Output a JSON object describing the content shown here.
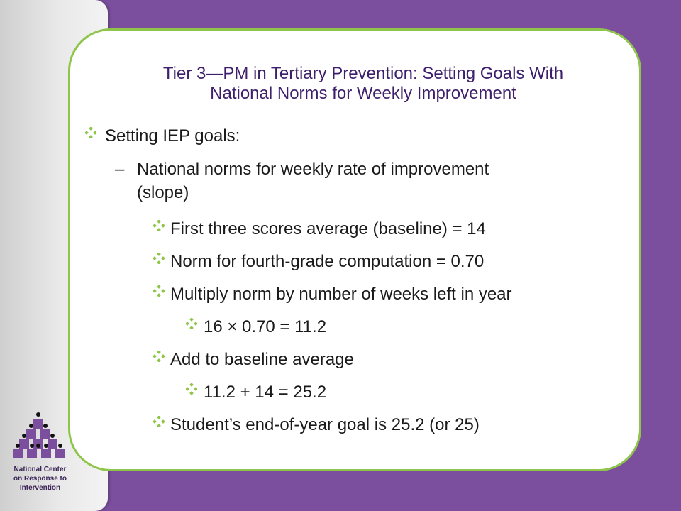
{
  "slide": {
    "title_line1": "Tier 3—PM in Tertiary Prevention: Setting Goals With",
    "title_line2": "National Norms for Weekly Improvement",
    "bullets": {
      "level1": "Setting IEP goals:",
      "dash_marker": "–",
      "dash_line1": "National norms for weekly rate of improvement",
      "dash_line2": "(slope)",
      "b1": "First three scores average (baseline) = 14",
      "b2": "Norm for fourth-grade computation = 0.70",
      "b3": "Multiply norm by number of weeks left in year",
      "b3_sub": "16 × 0.70 = 11.2",
      "b4": "Add to baseline average",
      "b4_sub": "11.2 + 14 = 25.2",
      "b5": "Student’s end-of-year goal is 25.2 (or 25)"
    }
  },
  "org": {
    "line1": "National Center",
    "line2": "on Response to",
    "line3": "Intervention"
  },
  "colors": {
    "background": "#7b4f9e",
    "card_border": "#8fc54a",
    "title": "#3d1f6b",
    "bullet_diamond": "#8fc54a"
  }
}
